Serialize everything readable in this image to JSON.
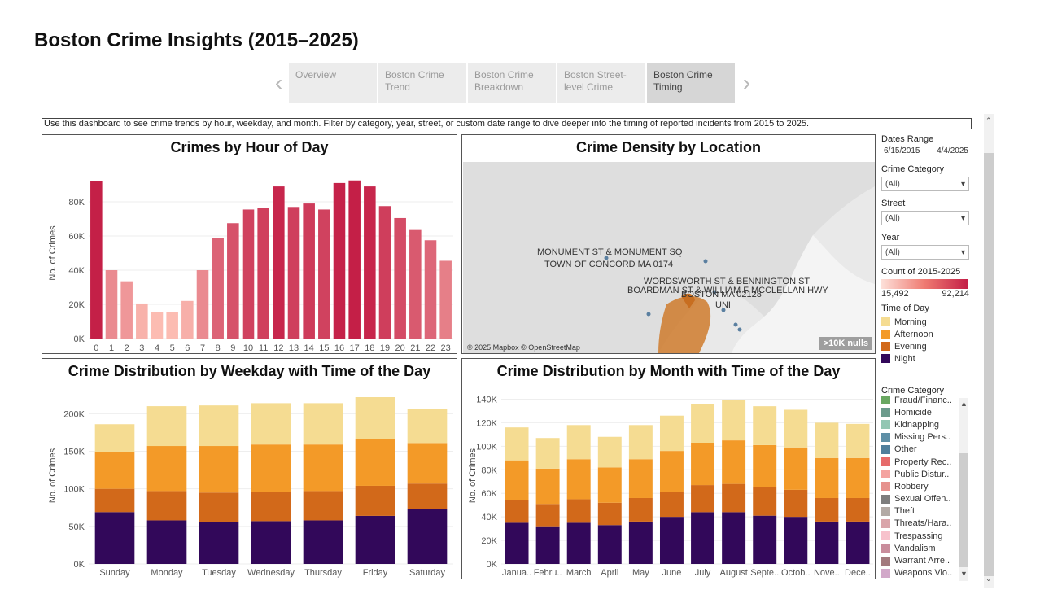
{
  "page": {
    "title": "Boston Crime Insights (2015–2025)"
  },
  "nav": {
    "prev_icon": "chevron-left-icon",
    "next_icon": "chevron-right-icon",
    "tabs": [
      {
        "label": "Overview"
      },
      {
        "label": "Boston Crime Trend"
      },
      {
        "label": "Boston Crime Breakdown"
      },
      {
        "label": "Boston Street-level Crime"
      },
      {
        "label": "Boston Crime Timing",
        "active": true
      }
    ]
  },
  "description": "Use this dashboard to see crime trends by hour, weekday, and month. Filter by category, year, street, or custom date range to dive deeper into the timing of reported incidents from 2015 to 2025.",
  "colors": {
    "morning": "#f5dc92",
    "afternoon": "#f39a28",
    "evening": "#d2691a",
    "night": "#32085a",
    "hour_low": "#fcbcb2",
    "hour_high": "#c41f47"
  },
  "filters": {
    "dates_label": "Dates Range",
    "date_start": "6/15/2015",
    "date_end": "4/4/2025",
    "category_label": "Crime Category",
    "category_value": "(All)",
    "street_label": "Street",
    "street_value": "(All)",
    "year_label": "Year",
    "year_value": "(All)"
  },
  "count_legend": {
    "label": "Count of 2015-2025",
    "min": "15,492",
    "max": "92,214"
  },
  "tod_legend": {
    "label": "Time of Day",
    "items": [
      {
        "name": "Morning",
        "color": "#f5dc92"
      },
      {
        "name": "Afternoon",
        "color": "#f39a28"
      },
      {
        "name": "Evening",
        "color": "#d2691a"
      },
      {
        "name": "Night",
        "color": "#32085a"
      }
    ]
  },
  "category_legend": {
    "label": "Crime Category",
    "items": [
      {
        "name": "Fraud/Financ..",
        "color": "#6aa862"
      },
      {
        "name": "Homicide",
        "color": "#6c9b8c"
      },
      {
        "name": "Kidnapping",
        "color": "#93c6b2"
      },
      {
        "name": "Missing Pers..",
        "color": "#5e8fa6"
      },
      {
        "name": "Other",
        "color": "#4f7f9c"
      },
      {
        "name": "Property Rec..",
        "color": "#e66b6b"
      },
      {
        "name": "Public Distur..",
        "color": "#f4a3a0"
      },
      {
        "name": "Robbery",
        "color": "#e6928e"
      },
      {
        "name": "Sexual Offen..",
        "color": "#7d7d7d"
      },
      {
        "name": "Theft",
        "color": "#b3aaa5"
      },
      {
        "name": "Threats/Hara..",
        "color": "#d9a5aa"
      },
      {
        "name": "Trespassing",
        "color": "#f7c2cc"
      },
      {
        "name": "Vandalism",
        "color": "#c98d9c"
      },
      {
        "name": "Warrant Arre..",
        "color": "#a37a7e"
      },
      {
        "name": "Weapons Vio..",
        "color": "#d2a8c9"
      }
    ]
  },
  "map": {
    "title": "Crime Density by Location",
    "credit": "© 2025 Mapbox © OpenStreetMap",
    "nulls": ">10K nulls",
    "labels": [
      "MONUMENT ST & MONUMENT SQ",
      "TOWN OF CONCORD  MA 0174",
      "WORDSWORTH ST & BENNINGTON ST",
      "BOARDMAN ST & WILLIAM F MCCLELLAN HWY",
      "BOSTON  MA 02128",
      "UNI"
    ]
  },
  "chart_data": [
    {
      "type": "bar",
      "title": "Crimes by Hour of Day",
      "ylabel": "No. of Crimes",
      "xlabel": "",
      "categories": [
        "0",
        "1",
        "2",
        "3",
        "4",
        "5",
        "6",
        "7",
        "8",
        "9",
        "10",
        "11",
        "12",
        "13",
        "14",
        "15",
        "16",
        "17",
        "18",
        "19",
        "20",
        "21",
        "22",
        "23"
      ],
      "values": [
        92214,
        40000,
        33500,
        20500,
        15700,
        15492,
        22000,
        40000,
        59000,
        67500,
        75500,
        76500,
        89000,
        77000,
        79000,
        75500,
        91000,
        92500,
        89000,
        77500,
        70500,
        63500,
        57500,
        45500
      ],
      "yticks": [
        "0K",
        "20K",
        "40K",
        "60K",
        "80K"
      ],
      "ylim": [
        0,
        100000
      ]
    },
    {
      "type": "bar",
      "title": "Crime Distribution by Weekday with Time of the Day",
      "ylabel": "No. of Crimes",
      "stacked": true,
      "categories": [
        "Sunday",
        "Monday",
        "Tuesday",
        "Wednesday",
        "Thursday",
        "Friday",
        "Saturday"
      ],
      "series": [
        {
          "name": "Night",
          "values": [
            69000,
            58000,
            56000,
            57000,
            58000,
            64000,
            73000
          ]
        },
        {
          "name": "Evening",
          "values": [
            31000,
            39000,
            39000,
            39000,
            39000,
            40000,
            34000
          ]
        },
        {
          "name": "Afternoon",
          "values": [
            49000,
            60000,
            62000,
            63000,
            62000,
            62000,
            54000
          ]
        },
        {
          "name": "Morning",
          "values": [
            37000,
            53000,
            54000,
            55000,
            55000,
            56000,
            45000
          ]
        }
      ],
      "yticks": [
        "0K",
        "50K",
        "100K",
        "150K",
        "200K"
      ],
      "ylim": [
        0,
        235000
      ]
    },
    {
      "type": "bar",
      "title": "Crime Distribution by Month with Time of the Day",
      "ylabel": "No. of Crimes",
      "stacked": true,
      "categories": [
        "Janua..",
        "Febru..",
        "March",
        "April",
        "May",
        "June",
        "July",
        "August",
        "Septe..",
        "Octob..",
        "Nove..",
        "Dece.."
      ],
      "series": [
        {
          "name": "Night",
          "values": [
            35000,
            32000,
            35000,
            33000,
            36000,
            40000,
            44000,
            44000,
            41000,
            40000,
            36000,
            36000
          ]
        },
        {
          "name": "Evening",
          "values": [
            19000,
            19000,
            20000,
            19000,
            20000,
            21000,
            23000,
            24000,
            24000,
            23000,
            20000,
            20000
          ]
        },
        {
          "name": "Afternoon",
          "values": [
            34000,
            30000,
            34000,
            30000,
            33000,
            35000,
            36000,
            37000,
            36000,
            36000,
            34000,
            34000
          ]
        },
        {
          "name": "Morning",
          "values": [
            28000,
            26000,
            29000,
            26000,
            29000,
            30000,
            33000,
            34000,
            33000,
            32000,
            30000,
            29000
          ]
        }
      ],
      "yticks": [
        "0K",
        "20K",
        "40K",
        "60K",
        "80K",
        "100K",
        "120K",
        "140K"
      ],
      "ylim": [
        0,
        150000
      ]
    }
  ]
}
